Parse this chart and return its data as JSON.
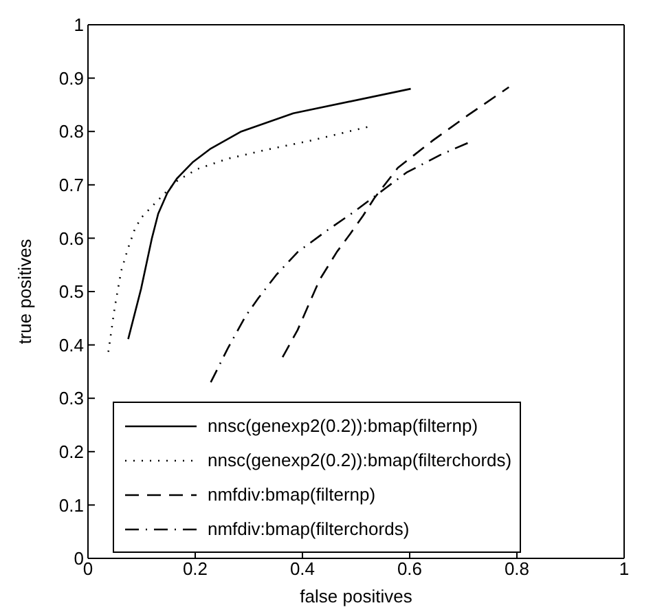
{
  "chart_data": {
    "type": "line",
    "xlabel": "false positives",
    "ylabel": "true positives",
    "xlim": [
      0,
      1
    ],
    "xticks": [
      0,
      0.2,
      0.4,
      0.6,
      0.8,
      1
    ],
    "ylim": [
      0,
      1
    ],
    "yticks": [
      0,
      0.1,
      0.2,
      0.3,
      0.4,
      0.5,
      0.6,
      0.7,
      0.8,
      0.9,
      1
    ],
    "legend": "bottom left",
    "marker": "none",
    "series": [
      {
        "name": "nnsc(genexp2(0.2)):bmap(filternp)",
        "color": "#000000",
        "line_style": "solid",
        "x": [
          0.075,
          0.099,
          0.119,
          0.131,
          0.148,
          0.166,
          0.196,
          0.229,
          0.286,
          0.383,
          0.602
        ],
        "values": [
          0.411,
          0.505,
          0.599,
          0.646,
          0.685,
          0.712,
          0.743,
          0.768,
          0.8,
          0.834,
          0.88
        ]
      },
      {
        "name": "nnsc(genexp2(0.2)):bmap(filterchords)",
        "color": "#000000",
        "line_style": "dotted",
        "x": [
          0.038,
          0.05,
          0.062,
          0.075,
          0.087,
          0.099,
          0.115,
          0.144,
          0.168,
          0.205,
          0.261,
          0.334,
          0.416,
          0.528
        ],
        "values": [
          0.387,
          0.471,
          0.539,
          0.582,
          0.616,
          0.638,
          0.655,
          0.685,
          0.709,
          0.73,
          0.749,
          0.766,
          0.783,
          0.81
        ]
      },
      {
        "name": "nmfdiv:bmap(filternp)",
        "color": "#000000",
        "line_style": "dashed",
        "x": [
          0.363,
          0.391,
          0.432,
          0.464,
          0.489,
          0.513,
          0.534,
          0.578,
          0.643,
          0.708,
          0.785
        ],
        "values": [
          0.377,
          0.428,
          0.522,
          0.574,
          0.608,
          0.642,
          0.675,
          0.732,
          0.783,
          0.83,
          0.883
        ]
      },
      {
        "name": "nmfdiv:bmap(filterchords)",
        "color": "#000000",
        "line_style": "dashdot",
        "x": [
          0.229,
          0.261,
          0.294,
          0.318,
          0.351,
          0.391,
          0.448,
          0.497,
          0.554,
          0.594,
          0.659,
          0.712
        ],
        "values": [
          0.33,
          0.394,
          0.454,
          0.488,
          0.531,
          0.574,
          0.616,
          0.65,
          0.693,
          0.723,
          0.757,
          0.78
        ]
      }
    ]
  }
}
